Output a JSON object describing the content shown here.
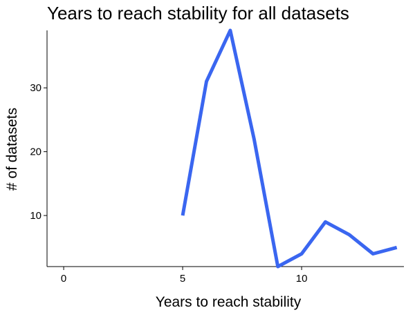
{
  "chart_data": {
    "type": "line",
    "title": "Years to reach stability for all datasets",
    "xlabel": "Years to reach stability",
    "ylabel": "# of datasets",
    "xlim": [
      -0.7,
      14.3
    ],
    "ylim": [
      2,
      39
    ],
    "xticks": [
      0,
      5,
      10
    ],
    "yticks": [
      10,
      20,
      30
    ],
    "grid": false,
    "series": [
      {
        "color": "#3A66F0",
        "x": [
          5,
          6,
          7,
          8,
          9,
          10,
          11,
          12,
          13,
          14
        ],
        "y": [
          10,
          31,
          39,
          22,
          2,
          4,
          9,
          7,
          4,
          5
        ]
      }
    ]
  }
}
